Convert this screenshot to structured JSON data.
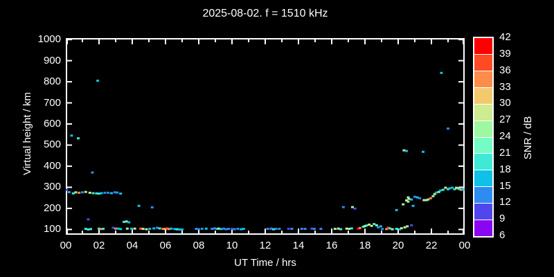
{
  "title": "2025-08-02. f = 1510 kHz",
  "chart_data": {
    "type": "scatter",
    "title": "2025-08-02. f = 1510 kHz",
    "xlabel": "UT Time / hrs",
    "ylabel": "Virtual height / km",
    "xlim_hours": [
      0,
      24
    ],
    "ylim_km": [
      75,
      1007
    ],
    "x_tick_hours": [
      0,
      2,
      4,
      6,
      8,
      10,
      12,
      14,
      16,
      18,
      20,
      22,
      24
    ],
    "x_tick_labels": [
      "00",
      "02",
      "04",
      "06",
      "08",
      "10",
      "12",
      "14",
      "16",
      "18",
      "20",
      "22",
      "00"
    ],
    "x_minor_tick_hours": [
      1,
      3,
      5,
      7,
      9,
      11,
      13,
      15,
      17,
      19,
      21,
      23
    ],
    "y_tick_km": [
      100,
      200,
      300,
      400,
      500,
      600,
      700,
      800,
      900,
      1000
    ],
    "grid": false,
    "background_color": "#000000",
    "frame_color": "#ffffff",
    "colorbar": {
      "label": "SNR / dB",
      "tick_values_top_to_bottom": [
        42,
        39,
        36,
        33,
        30,
        27,
        24,
        21,
        18,
        15,
        12,
        9,
        6
      ],
      "palette_low_to_high": [
        "#8a05f2",
        "#5046ee",
        "#2e8bf2",
        "#0fc0e8",
        "#3ee9d5",
        "#73fcc3",
        "#9ef8a0",
        "#cdeb8f",
        "#f2c96d",
        "#fd8c4a",
        "#ff4a24",
        "#fe0000"
      ]
    },
    "points_format": [
      "hour_ut",
      "virtual_height_km",
      "snr_color_index_0low_11high"
    ],
    "points": [
      [
        0.05,
        288,
        1
      ],
      [
        0.2,
        277,
        3
      ],
      [
        0.45,
        271,
        4
      ],
      [
        0.6,
        276,
        6
      ],
      [
        0.8,
        274,
        9
      ],
      [
        1.0,
        276,
        2
      ],
      [
        1.2,
        278,
        6
      ],
      [
        1.45,
        274,
        7
      ],
      [
        1.65,
        272,
        4
      ],
      [
        1.85,
        271,
        4
      ],
      [
        2.0,
        270,
        4
      ],
      [
        2.15,
        272,
        3
      ],
      [
        2.35,
        274,
        2
      ],
      [
        2.55,
        274,
        2
      ],
      [
        2.75,
        272,
        3
      ],
      [
        2.95,
        276,
        2
      ],
      [
        3.1,
        275,
        2
      ],
      [
        3.3,
        270,
        3
      ],
      [
        0.35,
        545,
        3
      ],
      [
        0.75,
        532,
        4
      ],
      [
        1.35,
        148,
        1
      ],
      [
        1.6,
        370,
        2
      ],
      [
        1.92,
        805,
        3
      ],
      [
        4.4,
        212,
        3
      ],
      [
        5.2,
        205,
        2
      ],
      [
        16.7,
        206,
        2
      ],
      [
        17.25,
        206,
        6
      ],
      [
        17.4,
        199,
        1
      ],
      [
        19.9,
        192,
        3
      ],
      [
        20.3,
        219,
        6
      ],
      [
        20.5,
        238,
        7
      ],
      [
        20.65,
        245,
        7
      ],
      [
        20.9,
        212,
        3
      ],
      [
        20.35,
        475,
        6
      ],
      [
        20.5,
        472,
        3
      ],
      [
        21.5,
        468,
        3
      ],
      [
        22.6,
        842,
        3
      ],
      [
        23.0,
        578,
        2
      ],
      [
        1.2,
        103,
        4
      ],
      [
        1.35,
        100,
        4
      ],
      [
        1.5,
        102,
        4
      ],
      [
        2.0,
        104,
        4
      ],
      [
        2.1,
        102,
        9
      ],
      [
        2.25,
        103,
        4
      ],
      [
        2.85,
        108,
        1
      ],
      [
        3.0,
        104,
        9
      ],
      [
        3.15,
        104,
        3
      ],
      [
        3.3,
        102,
        3
      ],
      [
        3.5,
        136,
        4
      ],
      [
        3.65,
        138,
        5
      ],
      [
        3.8,
        134,
        3
      ],
      [
        3.7,
        104,
        6
      ],
      [
        3.95,
        104,
        3
      ],
      [
        4.15,
        104,
        7
      ],
      [
        4.5,
        104,
        10
      ],
      [
        4.65,
        103,
        7
      ],
      [
        4.85,
        101,
        6
      ],
      [
        5.05,
        103,
        3
      ],
      [
        5.3,
        105,
        3
      ],
      [
        5.5,
        108,
        2
      ],
      [
        5.65,
        105,
        4
      ],
      [
        5.85,
        103,
        9
      ],
      [
        6.0,
        102,
        8
      ],
      [
        6.1,
        105,
        10
      ],
      [
        6.2,
        102,
        9
      ],
      [
        6.35,
        104,
        3
      ],
      [
        6.55,
        102,
        3
      ],
      [
        6.7,
        101,
        4
      ],
      [
        6.85,
        100,
        3
      ],
      [
        7.0,
        100,
        3
      ],
      [
        7.85,
        103,
        2
      ],
      [
        8.0,
        101,
        2
      ],
      [
        8.2,
        103,
        2
      ],
      [
        8.45,
        104,
        3
      ],
      [
        8.8,
        103,
        2
      ],
      [
        8.95,
        105,
        2
      ],
      [
        9.1,
        103,
        3
      ],
      [
        9.2,
        104,
        6
      ],
      [
        9.35,
        102,
        3
      ],
      [
        9.5,
        104,
        2
      ],
      [
        9.65,
        101,
        2
      ],
      [
        9.8,
        103,
        2
      ],
      [
        10.0,
        103,
        1
      ],
      [
        10.15,
        101,
        2
      ],
      [
        10.35,
        103,
        2
      ],
      [
        10.55,
        101,
        3
      ],
      [
        10.7,
        103,
        3
      ],
      [
        12.15,
        103,
        2
      ],
      [
        12.35,
        104,
        2
      ],
      [
        12.5,
        101,
        4
      ],
      [
        12.65,
        103,
        2
      ],
      [
        12.85,
        103,
        2
      ],
      [
        13.4,
        103,
        1
      ],
      [
        13.6,
        103,
        2
      ],
      [
        14.2,
        103,
        2
      ],
      [
        14.4,
        103,
        2
      ],
      [
        14.8,
        104,
        1
      ],
      [
        14.95,
        103,
        2
      ],
      [
        15.35,
        103,
        2
      ],
      [
        16.2,
        103,
        6
      ],
      [
        16.4,
        104,
        7
      ],
      [
        16.55,
        101,
        4
      ],
      [
        16.9,
        104,
        7
      ],
      [
        17.05,
        103,
        6
      ],
      [
        17.2,
        105,
        4
      ],
      [
        17.6,
        104,
        11
      ],
      [
        17.7,
        107,
        9
      ],
      [
        17.9,
        113,
        4
      ],
      [
        18.0,
        116,
        6
      ],
      [
        18.1,
        119,
        4
      ],
      [
        18.25,
        123,
        7
      ],
      [
        18.4,
        117,
        6
      ],
      [
        18.55,
        126,
        4
      ],
      [
        18.7,
        120,
        5
      ],
      [
        18.8,
        110,
        2
      ],
      [
        18.95,
        115,
        3
      ],
      [
        19.05,
        102,
        2
      ],
      [
        19.3,
        102,
        9
      ],
      [
        19.4,
        108,
        10
      ],
      [
        19.5,
        105,
        4
      ],
      [
        19.65,
        101,
        6
      ],
      [
        19.9,
        103,
        4
      ],
      [
        20.1,
        101,
        3
      ],
      [
        20.2,
        106,
        6
      ],
      [
        20.4,
        110,
        7
      ],
      [
        20.55,
        115,
        6
      ],
      [
        20.8,
        120,
        1
      ],
      [
        20.6,
        252,
        6
      ],
      [
        20.6,
        232,
        6
      ],
      [
        20.8,
        242,
        3
      ],
      [
        21.0,
        255,
        2
      ],
      [
        21.15,
        252,
        3
      ],
      [
        21.3,
        248,
        2
      ],
      [
        21.55,
        239,
        7
      ],
      [
        21.7,
        239,
        6
      ],
      [
        21.8,
        242,
        6
      ],
      [
        21.95,
        248,
        9
      ],
      [
        22.1,
        258,
        6
      ],
      [
        22.2,
        268,
        7
      ],
      [
        22.3,
        275,
        3
      ],
      [
        22.45,
        278,
        6
      ],
      [
        22.55,
        285,
        3
      ],
      [
        22.7,
        288,
        4
      ],
      [
        22.85,
        298,
        7
      ],
      [
        23.0,
        291,
        4
      ],
      [
        23.1,
        295,
        3
      ],
      [
        23.25,
        298,
        3
      ],
      [
        23.4,
        291,
        4
      ],
      [
        23.5,
        298,
        6
      ],
      [
        23.6,
        295,
        7
      ],
      [
        23.7,
        291,
        4
      ],
      [
        23.8,
        288,
        9
      ],
      [
        23.9,
        291,
        3
      ],
      [
        23.98,
        288,
        4
      ]
    ]
  }
}
